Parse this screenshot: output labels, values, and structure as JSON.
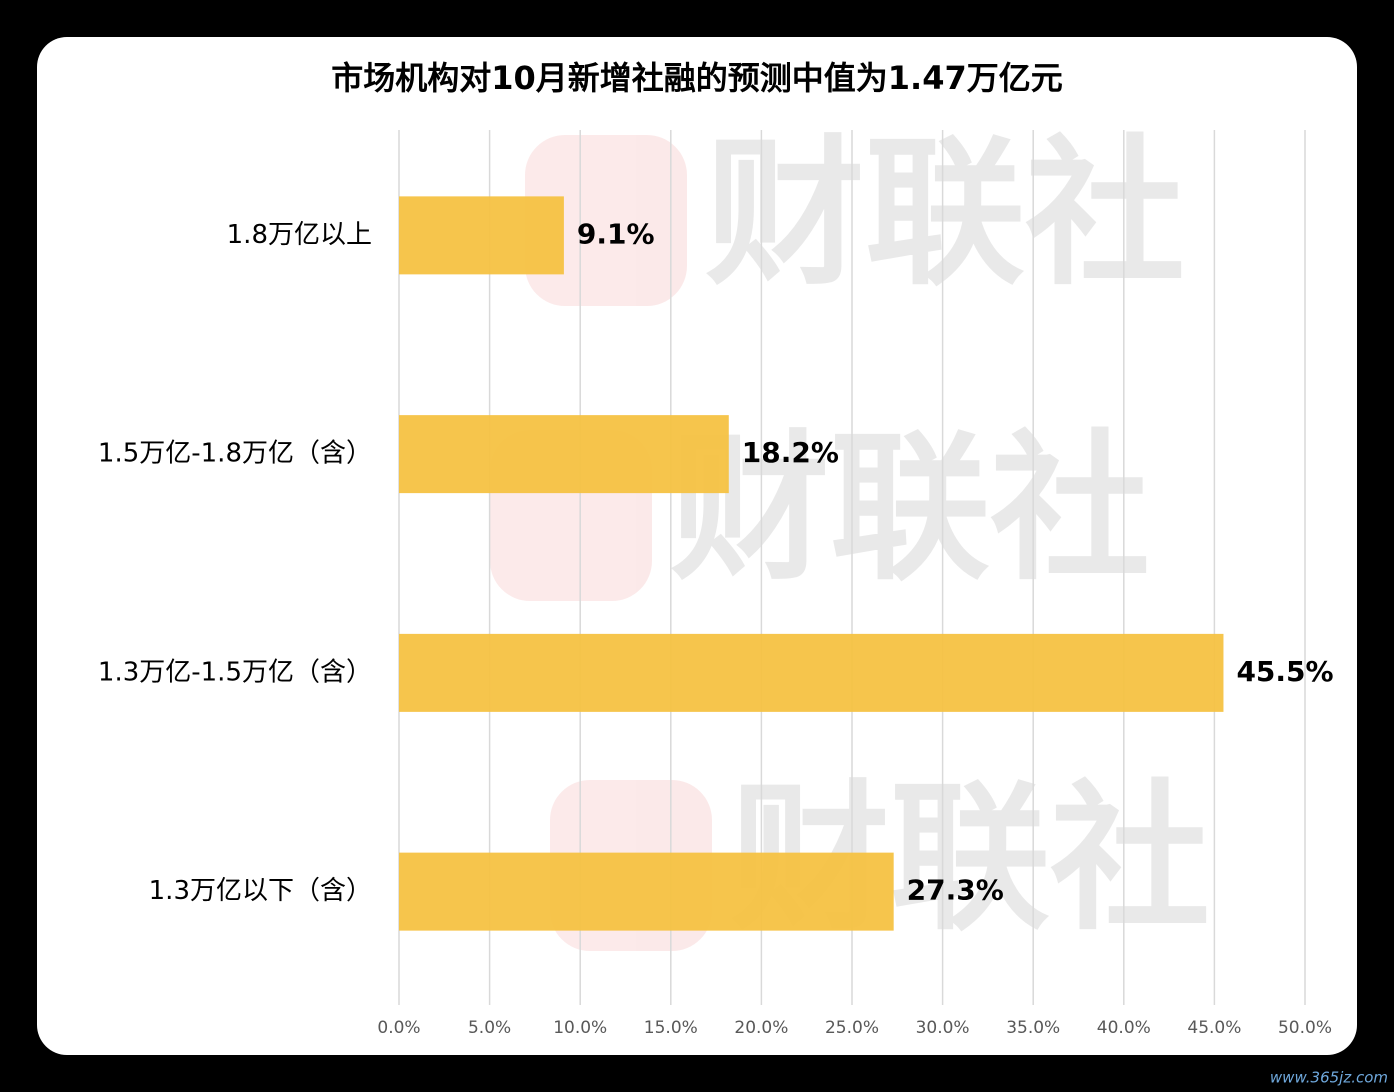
{
  "chart_data": {
    "type": "hbar",
    "title": "市场机构对10月新增社融的预测中值为1.47万亿元",
    "categories": [
      "1.8万亿以上",
      "1.5万亿-1.8万亿（含）",
      "1.3万亿-1.5万亿（含）",
      "1.3万亿以下（含）"
    ],
    "values": [
      9.1,
      18.2,
      45.5,
      27.3
    ],
    "value_labels": [
      "9.1%",
      "18.2%",
      "45.5%",
      "27.3%"
    ],
    "color": "#f5c242",
    "xlim": [
      0,
      50
    ],
    "xticks": [
      {
        "value": 0,
        "label": "0.0%"
      },
      {
        "value": 5,
        "label": "5.0%"
      },
      {
        "value": 10,
        "label": "10.0%"
      },
      {
        "value": 15,
        "label": "15.0%"
      },
      {
        "value": 20,
        "label": "20.0%"
      },
      {
        "value": 25,
        "label": "25.0%"
      },
      {
        "value": 30,
        "label": "30.0%"
      },
      {
        "value": 35,
        "label": "35.0%"
      },
      {
        "value": 40,
        "label": "40.0%"
      },
      {
        "value": 45,
        "label": "45.0%"
      },
      {
        "value": 50,
        "label": "50.0%"
      }
    ],
    "grid": true,
    "watermark": "财联社",
    "source_mark": "www.365jz.com"
  }
}
